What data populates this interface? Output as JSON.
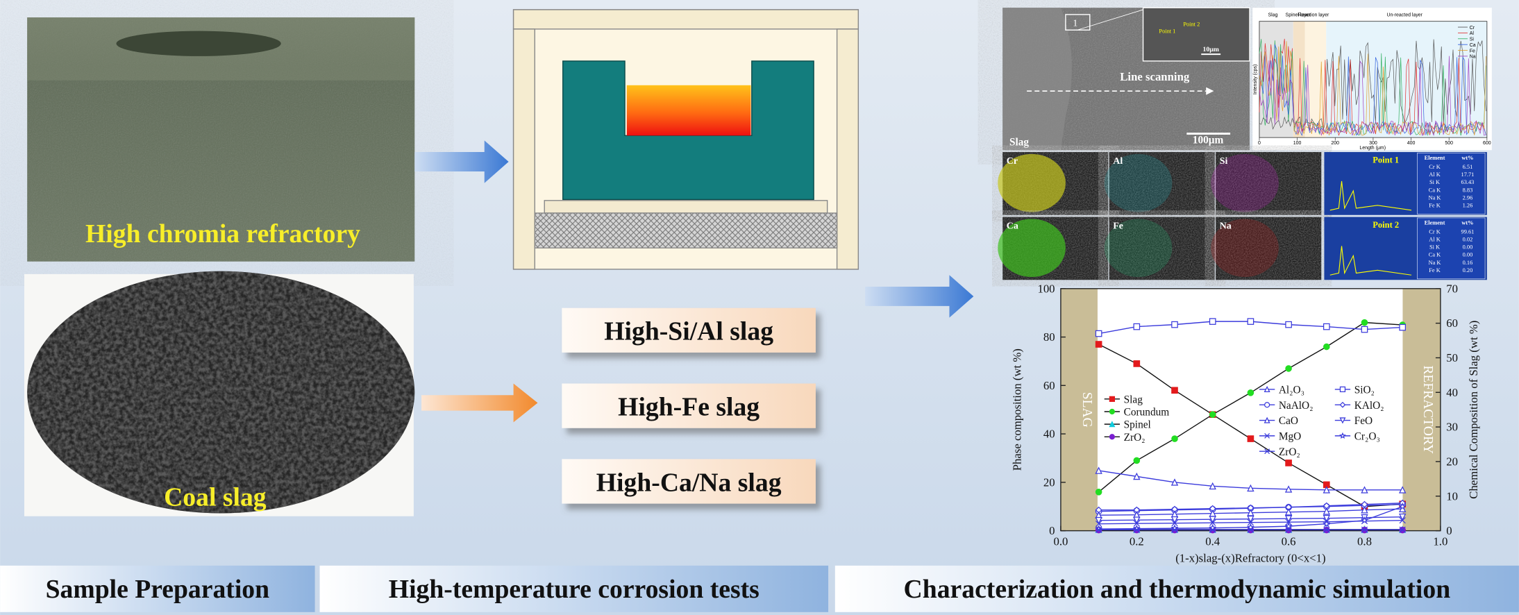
{
  "sample_preparation": {
    "refractory_label": "High chromia refractory",
    "slag_label": "Coal slag"
  },
  "corrosion_tests": {
    "slags": [
      "High-Si/Al slag",
      "High-Fe slag",
      "High-Ca/Na slag"
    ]
  },
  "characterization": {
    "sem": {
      "label": "Slag",
      "scale_bar": "100μm",
      "inset_scale_bar": "10μm",
      "inset_box": "1",
      "scan_label": "Line scanning",
      "points": [
        "Point 1",
        "Point 2"
      ]
    },
    "line_scan": {
      "zones": [
        "Slag",
        "Spinel layer",
        "Reaction layer",
        "Un-reacted layer"
      ],
      "x_label": "Length (μm)",
      "y_label": "Intensity (cps)",
      "xlim": [
        0,
        600
      ],
      "xticks": [
        0,
        100,
        200,
        300,
        400,
        500,
        600
      ],
      "legend": [
        "Cr",
        "Al",
        "Si",
        "Ca",
        "Fe",
        "Na"
      ]
    },
    "eds_maps": {
      "elements": [
        "Cr",
        "Al",
        "Si",
        "Ca",
        "Fe",
        "Na"
      ],
      "points": [
        {
          "title": "Point 1",
          "header": [
            "Element",
            "wt%"
          ],
          "rows": [
            [
              "Cr K",
              "6.51"
            ],
            [
              "Al K",
              "17.71"
            ],
            [
              "Si K",
              "63.43"
            ],
            [
              "Ca K",
              "8.83"
            ],
            [
              "Na K",
              "2.96"
            ],
            [
              "Fe K",
              "1.26"
            ]
          ]
        },
        {
          "title": "Point 2",
          "header": [
            "Element",
            "wt%"
          ],
          "rows": [
            [
              "Cr K",
              "99.61"
            ],
            [
              "Al K",
              "0.02"
            ],
            [
              "Si K",
              "0.00"
            ],
            [
              "Ca K",
              "0.00"
            ],
            [
              "Na K",
              "0.16"
            ],
            [
              "Fe K",
              "0.20"
            ]
          ]
        }
      ]
    }
  },
  "chart_data": {
    "type": "line",
    "x_label": "(1-x)slag-(x)Refractory (0<x<1)",
    "y_label": "Phase composition (wt %)",
    "y2_label": "Chemical Composition of Slag (wt %)",
    "band_labels": [
      "SLAG",
      "REFRACTORY"
    ],
    "xlim": [
      0,
      1
    ],
    "xticks": [
      {
        "value": 0,
        "label": "0.0"
      },
      {
        "value": 0.2,
        "label": "0.2"
      },
      {
        "value": 0.4,
        "label": "0.4"
      },
      {
        "value": 0.6,
        "label": "0.6"
      },
      {
        "value": 0.8,
        "label": "0.8"
      },
      {
        "value": 1,
        "label": "1.0"
      }
    ],
    "ylim": [
      0,
      100
    ],
    "yticks": [
      0,
      20,
      40,
      60,
      80,
      100
    ],
    "y2lim": [
      0,
      70
    ],
    "y2ticks": [
      0,
      10,
      20,
      30,
      40,
      50,
      60,
      70
    ],
    "x": [
      0.1,
      0.2,
      0.3,
      0.4,
      0.5,
      0.6,
      0.7,
      0.8,
      0.9
    ],
    "series": [
      {
        "name": "Slag",
        "color": "#e31a1c",
        "marker": "square",
        "filled": true,
        "values": [
          77,
          69,
          58,
          48,
          38,
          28,
          19,
          10,
          11
        ]
      },
      {
        "name": "Corundum",
        "color": "#22dd22",
        "marker": "circle",
        "filled": true,
        "values": [
          16,
          29,
          38,
          48,
          57,
          67,
          76,
          86,
          85
        ]
      },
      {
        "name": "Spinel",
        "color": "#11ccdd",
        "marker": "triangle",
        "filled": true,
        "values": [
          0.5,
          0.5,
          0.5,
          0.5,
          0.5,
          0.5,
          0.5,
          0.5,
          0.5
        ]
      },
      {
        "name": "ZrO₂",
        "color": "#7a1fd0",
        "marker": "circle",
        "filled": true,
        "values": [
          0.3,
          0.3,
          0.3,
          0.3,
          0.3,
          0.3,
          0.3,
          0.3,
          0.3
        ]
      },
      {
        "name": "Al₂O₃",
        "color": "#3b3bdc",
        "marker": "triangle",
        "filled": false,
        "axis": "y2",
        "values": [
          17.4,
          15.7,
          14,
          12.9,
          12.3,
          12,
          11.8,
          11.8,
          11.8
        ]
      },
      {
        "name": "SiO₂",
        "color": "#3b3bdc",
        "marker": "square",
        "filled": false,
        "axis": "y2",
        "values": [
          57,
          59,
          59.6,
          60.5,
          60.5,
          59.6,
          59,
          58.2,
          58.8
        ]
      },
      {
        "name": "NaAlO₂",
        "color": "#3b3bdc",
        "marker": "circle",
        "filled": false,
        "axis": "y2",
        "values": [
          5.6,
          5.8,
          6,
          6.2,
          6.5,
          6.8,
          7,
          7.3,
          7.6
        ]
      },
      {
        "name": "KAlO₂",
        "color": "#3b3bdc",
        "marker": "diamond",
        "filled": false,
        "axis": "y2",
        "values": [
          6,
          6,
          6.2,
          6.4,
          6.6,
          6.8,
          7.2,
          7.6,
          8
        ]
      },
      {
        "name": "CaO",
        "color": "#3b3bdc",
        "marker": "triangle",
        "filled": false,
        "axis": "y2",
        "values": [
          4.5,
          4.6,
          4.8,
          5,
          5.2,
          5.4,
          5.6,
          6,
          6.3
        ]
      },
      {
        "name": "FeO",
        "color": "#3b3bdc",
        "marker": "triangle-down",
        "filled": false,
        "axis": "y2",
        "values": [
          3,
          3.1,
          3.2,
          3.3,
          3.4,
          3.5,
          3.6,
          3.8,
          4
        ]
      },
      {
        "name": "MgO",
        "color": "#3b3bdc",
        "marker": "x",
        "filled": false,
        "axis": "y2",
        "values": [
          2,
          2.1,
          2.2,
          2.3,
          2.4,
          2.5,
          2.6,
          2.8,
          3
        ]
      },
      {
        "name": "Cr₂O₃",
        "color": "#3b3bdc",
        "marker": "star",
        "filled": false,
        "axis": "y2",
        "values": [
          0.5,
          0.6,
          0.7,
          0.8,
          1,
          1.3,
          2,
          3,
          7
        ]
      },
      {
        "name": "ZrO₂",
        "color": "#3b3bdc",
        "marker": "x",
        "filled": false,
        "axis": "y2",
        "values": [
          0.3,
          0.3,
          0.3,
          0.3,
          0.3,
          0.3,
          0.3,
          0.3,
          0.3
        ]
      }
    ]
  },
  "stages": [
    "Sample Preparation",
    "High-temperature corrosion tests",
    "Characterization and thermodynamic simulation"
  ]
}
